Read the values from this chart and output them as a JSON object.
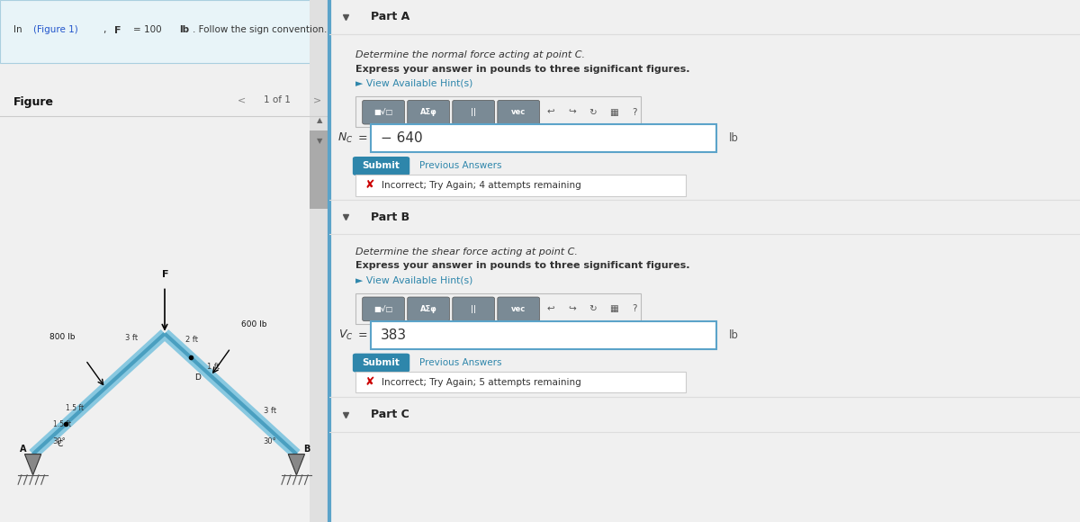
{
  "info_text_plain": "In (Figure 1), F = 100 lb. Follow the sign convention.",
  "figure_label": "Figure",
  "nav_text": "1 of 1",
  "partA_title": "Part A",
  "partA_desc1": "Determine the normal force acting at point C.",
  "partA_desc2": "Express your answer in pounds to three significant figures.",
  "partA_hint": "► View Available Hint(s)",
  "partA_nc_value": "− 640",
  "partA_unit": "lb",
  "partA_submit": "Submit",
  "partA_prev": "Previous Answers",
  "partA_incorrect": "Incorrect; Try Again; 4 attempts remaining",
  "partB_title": "Part B",
  "partB_desc1": "Determine the shear force acting at point C.",
  "partB_desc2": "Express your answer in pounds to three significant figures.",
  "partB_hint": "► View Available Hint(s)",
  "partB_vc_value": "383",
  "partB_unit": "lb",
  "partB_submit": "Submit",
  "partB_prev": "Previous Answers",
  "partB_incorrect": "Incorrect; Try Again; 5 attempts remaining",
  "partC_title": "Part C",
  "teal_color": "#5ba3c9",
  "submit_color": "#2e86ab",
  "hint_color": "#2e86ab",
  "incorrect_border": "#cccccc",
  "incorrect_x_color": "#cc0000",
  "input_border": "#5ba3c9",
  "toolbar_bg": "#7a8a95",
  "separator_color": "#dddddd",
  "info_bg": "#e8f4f8",
  "info_border": "#aacfdf",
  "left_bg": "#ffffff",
  "right_bg": "#ffffff",
  "panel_bg": "#f0f0f0",
  "btn_labels": [
    "■√□",
    "AΣφ",
    "||",
    "vec"
  ],
  "icon_syms": [
    "↩",
    "↪",
    "↻",
    "▦",
    "?"
  ]
}
